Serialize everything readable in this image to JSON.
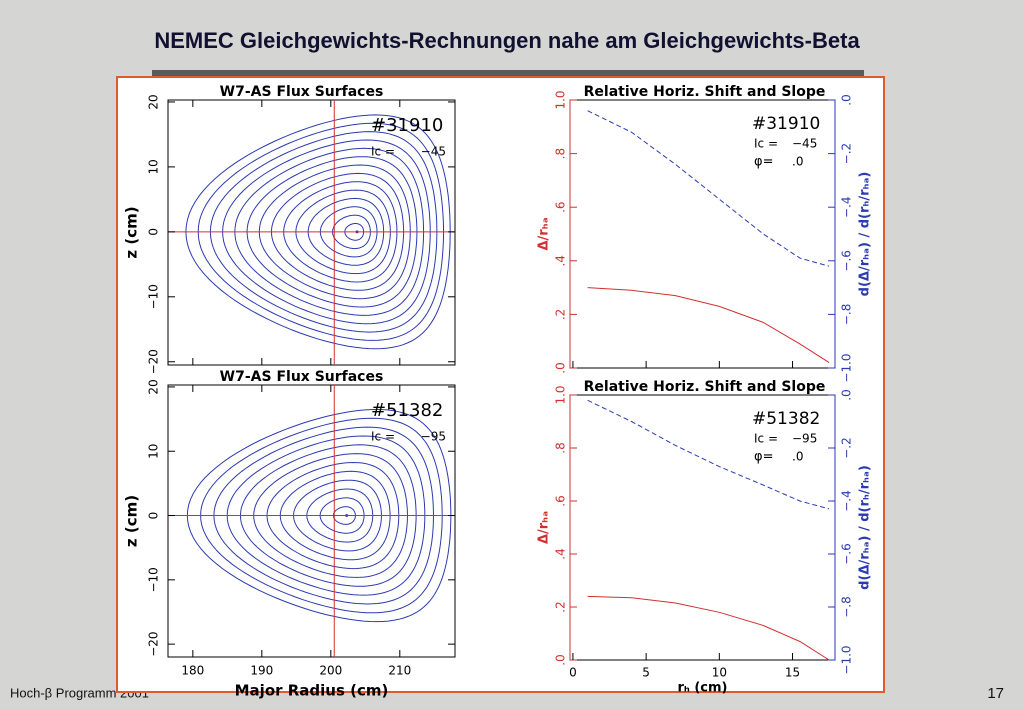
{
  "header": {
    "title": "NEMEC Gleichgewichts-Rechnungen nahe am Gleichgewichts-Beta"
  },
  "footer": {
    "left": "Hoch-β Programm 2001",
    "page": "17"
  },
  "chart_data": [
    {
      "type": "contour",
      "title": "W7-AS Flux Surfaces",
      "ylabel": "z (cm)",
      "xlim": [
        176.4,
        218
      ],
      "ylim": [
        -20.5,
        20.3
      ],
      "xticks": [
        180,
        190,
        200,
        210
      ],
      "xtick_labels": false,
      "yticks": [
        {
          "value": -20,
          "label": "−20"
        },
        {
          "value": -10,
          "label": "−10"
        },
        0,
        10,
        20
      ],
      "crosshair": [
        200.5,
        0
      ],
      "crosshair_color": "#d03030",
      "color": "#2b3bb0",
      "magnetic_axis": [
        203.8,
        0
      ],
      "boundary": {
        "xmin": 179,
        "xmax": 217.3,
        "zmax": 18
      },
      "surfaces": 14,
      "annotations": [
        "#31910",
        "Ic =",
        "−45"
      ]
    },
    {
      "type": "line",
      "title": "Relative Horiz. Shift and Slope",
      "ylabel": "Δ/rₕₐ",
      "y2label": "d(Δ/rₕₐ) / d(rₕ/rₕₐ)",
      "xlim": [
        -0.2,
        17.9
      ],
      "ylim": [
        0,
        1
      ],
      "y2lim": [
        -1,
        0
      ],
      "xticks": [
        0,
        5,
        10,
        15
      ],
      "xtick_labels": false,
      "yticks": [
        {
          "value": 0,
          "label": ".0"
        },
        {
          "value": 0.2,
          "label": ".2"
        },
        {
          "value": 0.4,
          "label": ".4"
        },
        {
          "value": 0.6,
          "label": ".6"
        },
        {
          "value": 0.8,
          "label": ".8"
        },
        {
          "value": 1,
          "label": "1.0"
        }
      ],
      "y2ticks": [
        {
          "value": -1,
          "label": "−1.0"
        },
        {
          "value": -0.8,
          "label": "−.8"
        },
        {
          "value": -0.6,
          "label": "−.6"
        },
        {
          "value": -0.4,
          "label": "−.4"
        },
        {
          "value": -0.2,
          "label": "−.2"
        },
        {
          "value": 0,
          "label": ".0"
        }
      ],
      "x": [
        1,
        4,
        7,
        10,
        13,
        15.5,
        17.5
      ],
      "series": [
        {
          "color": "#d03030",
          "values": [
            0.3,
            0.29,
            0.27,
            0.23,
            0.17,
            0.09,
            0.02
          ]
        },
        {
          "color": "#2b3bb0",
          "axis": "y2",
          "line_style": "dashed",
          "values": [
            -0.04,
            -0.12,
            -0.24,
            -0.37,
            -0.5,
            -0.59,
            -0.62
          ]
        }
      ],
      "annotations": [
        "#31910",
        "Ic =",
        "−45",
        "φ=",
        ".0"
      ]
    },
    {
      "type": "contour",
      "title": "W7-AS Flux Surfaces",
      "ylabel": "z (cm)",
      "xlabel": "Major Radius (cm)",
      "xlim": [
        176.4,
        218
      ],
      "ylim": [
        -22,
        20.3
      ],
      "xticks": [
        180,
        190,
        200,
        210
      ],
      "xtick_labels": true,
      "yticks": [
        {
          "value": -20,
          "label": "−20"
        },
        {
          "value": -10,
          "label": "−10"
        },
        0,
        10,
        20
      ],
      "crosshair": [
        200.5,
        0
      ],
      "crosshair_color": "#d03030",
      "color": "#2b3bb0",
      "magnetic_axis": [
        202.3,
        0
      ],
      "boundary": {
        "xmin": 179.2,
        "xmax": 217.4,
        "zmax": 16.5
      },
      "surfaces": 12,
      "annotations": [
        "#51382",
        "Ic =",
        "−95"
      ]
    },
    {
      "type": "line",
      "title": "Relative Horiz. Shift and Slope",
      "ylabel": "Δ/rₕₐ",
      "y2label": "d(Δ/rₕₐ) / d(rₕ/rₕₐ)",
      "xlabel": "rₕ (cm)",
      "xlim": [
        -0.2,
        17.9
      ],
      "ylim": [
        0,
        1
      ],
      "y2lim": [
        -1,
        0
      ],
      "xticks": [
        0,
        5,
        10,
        15
      ],
      "xtick_labels": true,
      "yticks": [
        {
          "value": 0,
          "label": ".0"
        },
        {
          "value": 0.2,
          "label": ".2"
        },
        {
          "value": 0.4,
          "label": ".4"
        },
        {
          "value": 0.6,
          "label": ".6"
        },
        {
          "value": 0.8,
          "label": ".8"
        },
        {
          "value": 1,
          "label": "1.0"
        }
      ],
      "y2ticks": [
        {
          "value": -1,
          "label": "−1.0"
        },
        {
          "value": -0.8,
          "label": "−.8"
        },
        {
          "value": -0.6,
          "label": "−.6"
        },
        {
          "value": -0.4,
          "label": "−.4"
        },
        {
          "value": -0.2,
          "label": "−.2"
        },
        {
          "value": 0,
          "label": ".0"
        }
      ],
      "x": [
        1,
        4,
        7,
        10,
        13,
        15.5,
        17.5
      ],
      "series": [
        {
          "color": "#d03030",
          "values": [
            0.24,
            0.235,
            0.215,
            0.18,
            0.13,
            0.07,
            0.0
          ]
        },
        {
          "color": "#2b3bb0",
          "axis": "y2",
          "line_style": "dashed",
          "values": [
            -0.02,
            -0.1,
            -0.19,
            -0.27,
            -0.34,
            -0.4,
            -0.43
          ]
        }
      ],
      "annotations": [
        "#51382",
        "Ic =",
        "−95",
        "φ=",
        ".0"
      ]
    }
  ]
}
